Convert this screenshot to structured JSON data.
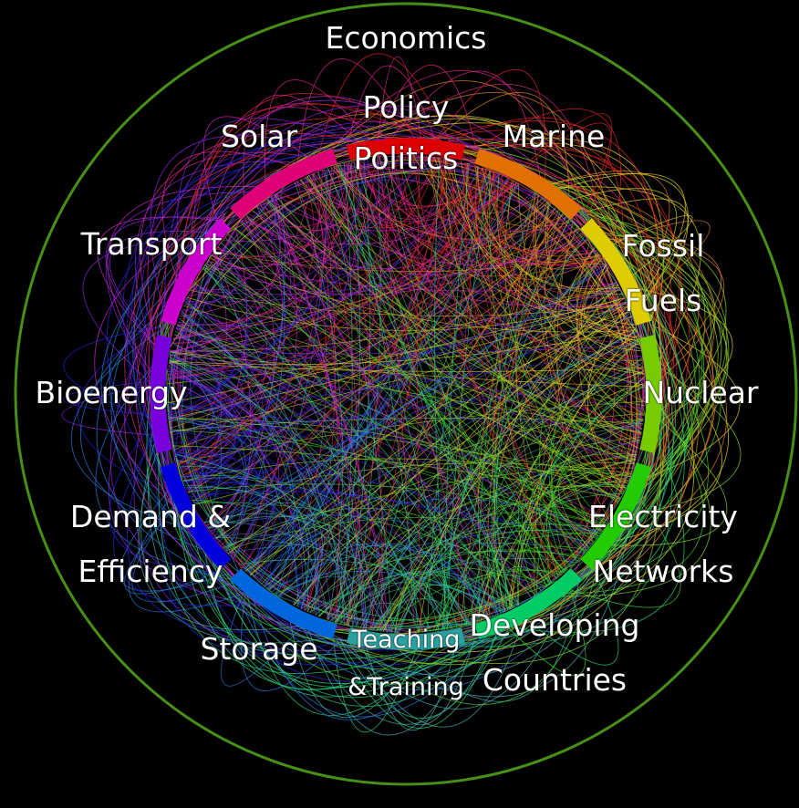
{
  "segments": [
    {
      "lines": [
        "Economics",
        "Policy",
        "Politics"
      ],
      "color": "#dd0000"
    },
    {
      "lines": [
        "Marine"
      ],
      "color": "#e07000"
    },
    {
      "lines": [
        "Fossil",
        "Fuels"
      ],
      "color": "#ddcc00"
    },
    {
      "lines": [
        "Nuclear"
      ],
      "color": "#77cc00"
    },
    {
      "lines": [
        "Electricity",
        "Networks"
      ],
      "color": "#22cc00"
    },
    {
      "lines": [
        "Developing",
        "Countries"
      ],
      "color": "#00cc66"
    },
    {
      "lines": [
        "Teaching",
        "&Training"
      ],
      "color": "#2aa0a0"
    },
    {
      "lines": [
        "Storage"
      ],
      "color": "#0066dd"
    },
    {
      "lines": [
        "Demand &",
        "Efficiency"
      ],
      "color": "#0000dd"
    },
    {
      "lines": [
        "Bioenergy"
      ],
      "color": "#7700dd"
    },
    {
      "lines": [
        "Transport"
      ],
      "color": "#cc00cc"
    },
    {
      "lines": [
        "Solar"
      ],
      "color": "#dd0077"
    }
  ]
}
